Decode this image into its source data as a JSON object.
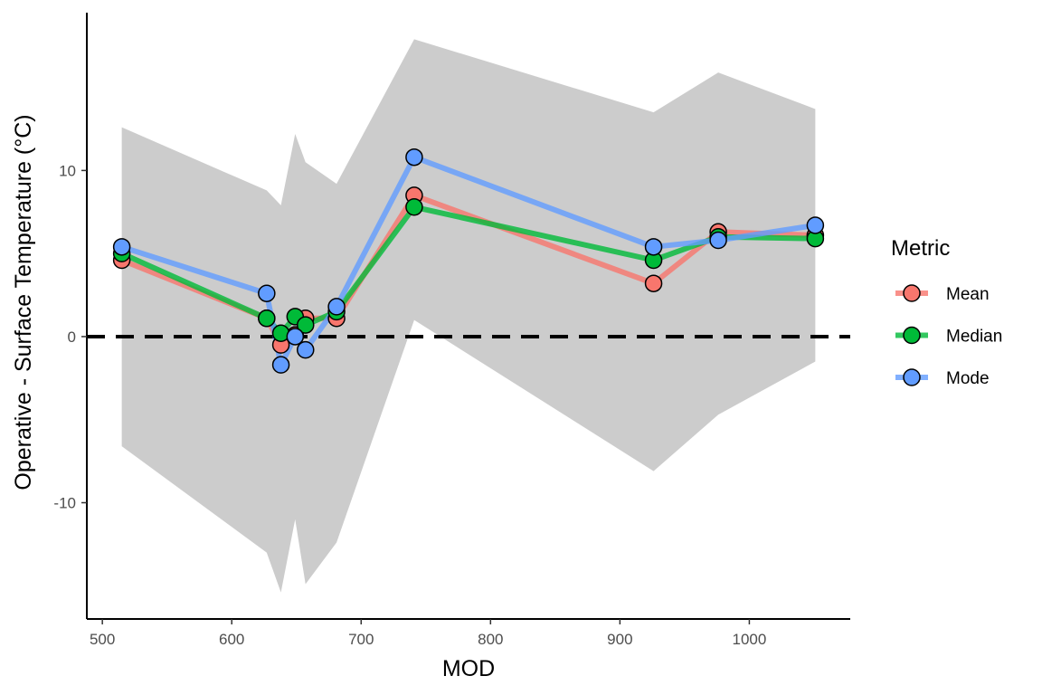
{
  "chart_data": {
    "type": "line",
    "xlabel": "MOD",
    "ylabel": "Operative - Surface Temperature (°C)",
    "xlim": [
      488,
      1078
    ],
    "ylim": [
      -17,
      19.5
    ],
    "x_ticks": [
      500,
      600,
      700,
      800,
      900,
      1000
    ],
    "y_ticks": [
      -10,
      0,
      10
    ],
    "x_tick_labels": [
      "500",
      "600",
      "700",
      "800",
      "900",
      "1000"
    ],
    "y_tick_labels": [
      "-10",
      "0",
      "10"
    ],
    "reference_line": {
      "y": 0,
      "style": "dashed"
    },
    "grid": false,
    "legend": {
      "title": "Metric",
      "position": "right"
    },
    "x": [
      515,
      627,
      638,
      649,
      657,
      681,
      741,
      926,
      976,
      1051
    ],
    "series": [
      {
        "name": "Mean",
        "color": "#F8766D",
        "values": [
          4.6,
          1.1,
          -0.5,
          0.1,
          1.1,
          1.1,
          8.5,
          3.2,
          6.3,
          6.1
        ]
      },
      {
        "name": "Median",
        "color": "#00BA38",
        "values": [
          5.0,
          1.1,
          0.2,
          1.2,
          0.7,
          1.5,
          7.8,
          4.6,
          6.0,
          5.9
        ]
      },
      {
        "name": "Mode",
        "color": "#619CFF",
        "values": [
          5.4,
          2.6,
          -1.7,
          0.0,
          -0.8,
          1.8,
          10.8,
          5.4,
          5.8,
          6.7
        ]
      }
    ],
    "ribbon": {
      "color": "#CCCCCC",
      "points": [
        {
          "x": 515,
          "upper": 12.6,
          "lower": -6.6
        },
        {
          "x": 627,
          "upper": 8.8,
          "lower": -13.0
        },
        {
          "x": 638,
          "upper": 7.9,
          "lower": -15.4
        },
        {
          "x": 649,
          "upper": 12.2,
          "lower": -11.0
        },
        {
          "x": 657,
          "upper": 10.5,
          "lower": -14.9
        },
        {
          "x": 681,
          "upper": 9.2,
          "lower": -12.4
        },
        {
          "x": 741,
          "upper": 17.9,
          "lower": 1.0
        },
        {
          "x": 926,
          "upper": 13.5,
          "lower": -8.1
        },
        {
          "x": 976,
          "upper": 15.9,
          "lower": -4.7
        },
        {
          "x": 1051,
          "upper": 13.7,
          "lower": -1.5
        }
      ]
    }
  }
}
